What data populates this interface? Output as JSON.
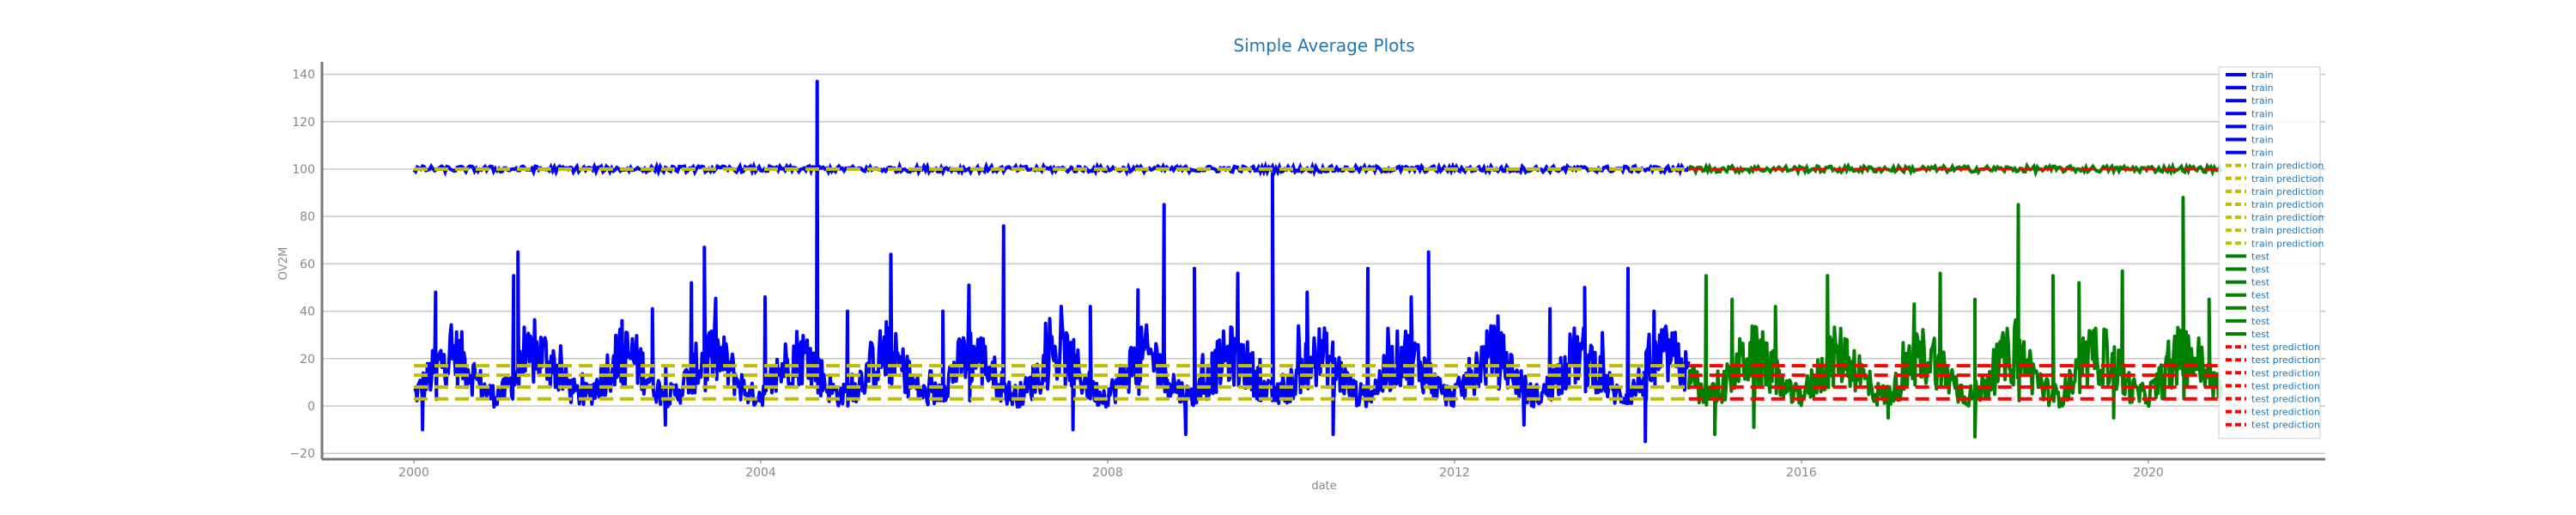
{
  "chart_data": {
    "type": "line",
    "title": "Simple Average Plots",
    "xlabel": "date",
    "ylabel": "OV2M",
    "xlim": [
      1999.0,
      2022.0
    ],
    "ylim": [
      -23,
      145
    ],
    "xticks": [
      "2000",
      "2004",
      "2008",
      "2012",
      "2016",
      "2020"
    ],
    "yticks": [
      "-20",
      "0",
      "20",
      "40",
      "60",
      "80",
      "100",
      "120",
      "140"
    ],
    "grid": "horizontal",
    "legend_position": "top-right",
    "colors": {
      "train": "#0000ff",
      "train_prediction": "#bfbf00",
      "test": "#008000",
      "test_prediction": "#ff0000",
      "title": "#1f77b4",
      "grid": "#c8c8c8",
      "axis": "#777777"
    },
    "legend": [
      {
        "label": "train",
        "series": "train",
        "style": "solid"
      },
      {
        "label": "train",
        "series": "train",
        "style": "solid"
      },
      {
        "label": "train",
        "series": "train",
        "style": "solid"
      },
      {
        "label": "train",
        "series": "train",
        "style": "solid"
      },
      {
        "label": "train",
        "series": "train",
        "style": "solid"
      },
      {
        "label": "train",
        "series": "train",
        "style": "solid"
      },
      {
        "label": "train",
        "series": "train",
        "style": "solid"
      },
      {
        "label": "train prediction",
        "series": "train_prediction",
        "style": "dashed"
      },
      {
        "label": "train prediction",
        "series": "train_prediction",
        "style": "dashed"
      },
      {
        "label": "train prediction",
        "series": "train_prediction",
        "style": "dashed"
      },
      {
        "label": "train prediction",
        "series": "train_prediction",
        "style": "dashed"
      },
      {
        "label": "train prediction",
        "series": "train_prediction",
        "style": "dashed"
      },
      {
        "label": "train prediction",
        "series": "train_prediction",
        "style": "dashed"
      },
      {
        "label": "train prediction",
        "series": "train_prediction",
        "style": "dashed"
      },
      {
        "label": "test",
        "series": "test",
        "style": "solid"
      },
      {
        "label": "test",
        "series": "test",
        "style": "solid"
      },
      {
        "label": "test",
        "series": "test",
        "style": "solid"
      },
      {
        "label": "test",
        "series": "test",
        "style": "solid"
      },
      {
        "label": "test",
        "series": "test",
        "style": "solid"
      },
      {
        "label": "test",
        "series": "test",
        "style": "solid"
      },
      {
        "label": "test",
        "series": "test",
        "style": "solid"
      },
      {
        "label": "test prediction",
        "series": "test_prediction",
        "style": "dashed"
      },
      {
        "label": "test prediction",
        "series": "test_prediction",
        "style": "dashed"
      },
      {
        "label": "test prediction",
        "series": "test_prediction",
        "style": "dashed"
      },
      {
        "label": "test prediction",
        "series": "test_prediction",
        "style": "dashed"
      },
      {
        "label": "test prediction",
        "series": "test_prediction",
        "style": "dashed"
      },
      {
        "label": "test prediction",
        "series": "test_prediction",
        "style": "dashed"
      },
      {
        "label": "test prediction",
        "series": "test_prediction",
        "style": "dashed"
      }
    ],
    "train_range": [
      2000.0,
      2014.7
    ],
    "test_range": [
      2014.7,
      2020.85
    ],
    "upper_band_level": 100,
    "lower_band_typical_range": [
      0,
      30
    ],
    "prediction_levels": [
      3,
      8,
      13,
      17
    ],
    "train_spikes": [
      {
        "x": 2000.25,
        "y": 48
      },
      {
        "x": 2001.15,
        "y": 55
      },
      {
        "x": 2001.2,
        "y": 65
      },
      {
        "x": 2002.4,
        "y": 36
      },
      {
        "x": 2002.75,
        "y": 41
      },
      {
        "x": 2003.2,
        "y": 52
      },
      {
        "x": 2003.35,
        "y": 67
      },
      {
        "x": 2004.05,
        "y": 46
      },
      {
        "x": 2004.65,
        "y": 137
      },
      {
        "x": 2005.0,
        "y": 40
      },
      {
        "x": 2005.5,
        "y": 64
      },
      {
        "x": 2006.1,
        "y": 40
      },
      {
        "x": 2006.4,
        "y": 51
      },
      {
        "x": 2006.8,
        "y": 76
      },
      {
        "x": 2007.8,
        "y": 42
      },
      {
        "x": 2008.35,
        "y": 49
      },
      {
        "x": 2008.65,
        "y": 85
      },
      {
        "x": 2009.0,
        "y": 58
      },
      {
        "x": 2009.5,
        "y": 56
      },
      {
        "x": 2009.9,
        "y": 98
      },
      {
        "x": 2010.3,
        "y": 48
      },
      {
        "x": 2011.0,
        "y": 58
      },
      {
        "x": 2011.5,
        "y": 46
      },
      {
        "x": 2011.7,
        "y": 65
      },
      {
        "x": 2012.5,
        "y": 38
      },
      {
        "x": 2013.1,
        "y": 41
      },
      {
        "x": 2013.5,
        "y": 50
      },
      {
        "x": 2014.0,
        "y": 58
      },
      {
        "x": 2014.3,
        "y": 40
      }
    ],
    "test_spikes": [
      {
        "x": 2014.9,
        "y": 55
      },
      {
        "x": 2015.2,
        "y": 45
      },
      {
        "x": 2015.7,
        "y": 42
      },
      {
        "x": 2016.3,
        "y": 55
      },
      {
        "x": 2017.3,
        "y": 43
      },
      {
        "x": 2017.6,
        "y": 56
      },
      {
        "x": 2018.0,
        "y": 45
      },
      {
        "x": 2018.5,
        "y": 85
      },
      {
        "x": 2018.9,
        "y": 55
      },
      {
        "x": 2019.2,
        "y": 52
      },
      {
        "x": 2019.7,
        "y": 57
      },
      {
        "x": 2020.4,
        "y": 88
      },
      {
        "x": 2020.7,
        "y": 45
      }
    ],
    "test_dips": [
      {
        "x": 2015.0,
        "y": -12
      },
      {
        "x": 2015.45,
        "y": -9
      },
      {
        "x": 2017.0,
        "y": -5
      },
      {
        "x": 2018.0,
        "y": -13
      },
      {
        "x": 2019.6,
        "y": -5
      }
    ],
    "train_dips": [
      {
        "x": 2000.1,
        "y": -10
      },
      {
        "x": 2002.9,
        "y": -8
      },
      {
        "x": 2007.6,
        "y": -10
      },
      {
        "x": 2008.9,
        "y": -12
      },
      {
        "x": 2010.6,
        "y": -12
      },
      {
        "x": 2014.2,
        "y": -15
      },
      {
        "x": 2012.8,
        "y": -8
      }
    ]
  }
}
